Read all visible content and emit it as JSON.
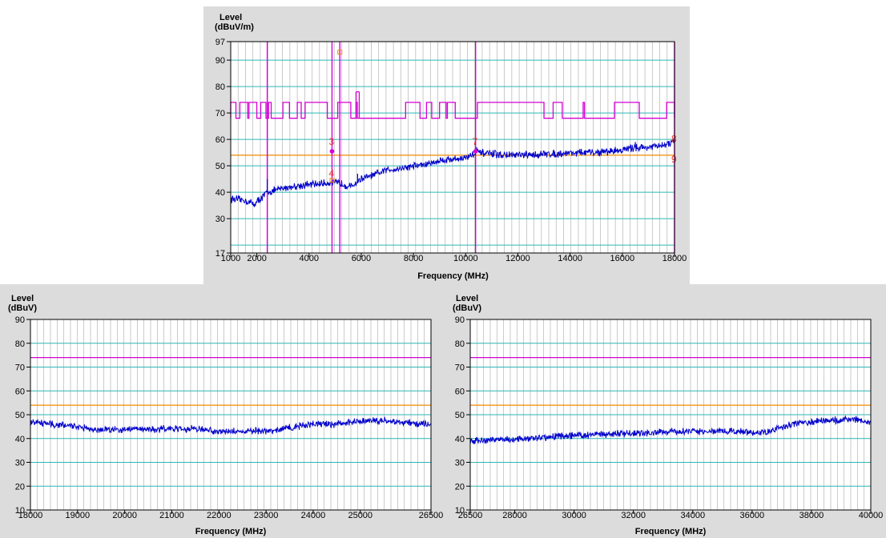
{
  "colors": {
    "panel_bg": "#dcdcdc",
    "plot_bg": "#ffffff",
    "grid_horizontal": "#2cb6b6",
    "grid_vertical": "#b4b4b4",
    "trace": "#0000cc",
    "limit_magenta": "#d400d4",
    "limit_orange": "#f08c00",
    "marker_red": "#e83030"
  },
  "chart_data": [
    {
      "type": "line",
      "ylabel_line1": "Level",
      "ylabel_line2": "(dBuV/m)",
      "xlabel": "Frequency (MHz)",
      "xlim": [
        1000,
        18000
      ],
      "ylim": [
        17,
        97
      ],
      "x_ticks": [
        "1000",
        "2000",
        "4000",
        "6000",
        "8000",
        "10000",
        "12000",
        "14000",
        "16000",
        "18000"
      ],
      "x_tick_values": [
        1000,
        2000,
        4000,
        6000,
        8000,
        10000,
        12000,
        14000,
        16000,
        18000
      ],
      "y_ticks": [
        "17",
        "30",
        "40",
        "50",
        "60",
        "70",
        "80",
        "90",
        "97"
      ],
      "y_tick_values": [
        17,
        30,
        40,
        50,
        60,
        70,
        80,
        90,
        97
      ],
      "horizontal_grid_values": [
        20,
        30,
        40,
        50,
        60,
        70,
        80,
        90
      ],
      "limit_line_level": 54,
      "vertical_lines": [
        2400,
        4880,
        5180,
        10380,
        18000
      ],
      "trace": {
        "points": [
          [
            1000,
            37.5
          ],
          [
            1500,
            37
          ],
          [
            1900,
            35.5
          ],
          [
            2200,
            38
          ],
          [
            2400,
            40
          ],
          [
            3000,
            41.5
          ],
          [
            3600,
            42.5
          ],
          [
            4200,
            43
          ],
          [
            4700,
            43.5
          ],
          [
            5200,
            43.5
          ],
          [
            5600,
            42
          ],
          [
            6000,
            45
          ],
          [
            6500,
            46.5
          ],
          [
            7000,
            48.5
          ],
          [
            7500,
            49
          ],
          [
            8000,
            50
          ],
          [
            8500,
            50.5
          ],
          [
            9000,
            52
          ],
          [
            9500,
            52.5
          ],
          [
            10000,
            53
          ],
          [
            10400,
            55
          ],
          [
            11000,
            54.5
          ],
          [
            11500,
            54
          ],
          [
            12000,
            54
          ],
          [
            12500,
            54
          ],
          [
            13000,
            54.5
          ],
          [
            13500,
            54.5
          ],
          [
            14000,
            55
          ],
          [
            14500,
            55
          ],
          [
            15000,
            55
          ],
          [
            15500,
            55.5
          ],
          [
            16000,
            56
          ],
          [
            16500,
            57
          ],
          [
            17000,
            57
          ],
          [
            17500,
            57.5
          ],
          [
            18000,
            59
          ]
        ],
        "spikes": [
          [
            2400,
            45
          ],
          [
            5860,
            47
          ],
          [
            10420,
            57
          ],
          [
            16500,
            59
          ]
        ]
      },
      "peak_limit": {
        "low": 68,
        "high": 74,
        "high_ranges": [
          [
            1000,
            1200
          ],
          [
            1350,
            1650
          ],
          [
            1700,
            2000
          ],
          [
            2150,
            2350
          ],
          [
            2450,
            2550
          ],
          [
            3000,
            3250
          ],
          [
            3550,
            3700
          ],
          [
            3850,
            4700
          ],
          [
            5100,
            5600
          ],
          [
            5800,
            5850
          ],
          [
            7700,
            8250
          ],
          [
            8500,
            8700
          ],
          [
            9000,
            9250
          ],
          [
            9300,
            9600
          ],
          [
            10450,
            13000
          ],
          [
            13350,
            13700
          ],
          [
            14500,
            14550
          ],
          [
            15700,
            16650
          ],
          [
            17700,
            18000
          ]
        ],
        "spikes": [
          [
            5800,
            78
          ]
        ]
      },
      "markers": [
        {
          "label": "3",
          "x": 4880,
          "y": 55.5
        },
        {
          "label": "4",
          "x": 4880,
          "y": 45
        },
        {
          "label": "7",
          "x": 10380,
          "y": 55.5
        },
        {
          "label": "8",
          "x": 18000,
          "y": 59
        },
        {
          "label": "9",
          "x": 18000,
          "y": 52.5
        }
      ],
      "square_markers": [
        {
          "x": 5180,
          "y": 93
        },
        {
          "x": 4880,
          "y": 44.5
        }
      ]
    },
    {
      "type": "line",
      "ylabel_line1": "Level",
      "ylabel_line2": "(dBuV)",
      "xlabel": "Frequency (MHz)",
      "xlim": [
        18000,
        26500
      ],
      "ylim": [
        10,
        90
      ],
      "x_ticks": [
        "18000",
        "19000",
        "20000",
        "21000",
        "22000",
        "23000",
        "24000",
        "25000",
        "26500"
      ],
      "x_tick_values": [
        18000,
        19000,
        20000,
        21000,
        22000,
        23000,
        24000,
        25000,
        26500
      ],
      "y_ticks": [
        "10",
        "20",
        "30",
        "40",
        "50",
        "60",
        "70",
        "80",
        "90"
      ],
      "y_tick_values": [
        10,
        20,
        30,
        40,
        50,
        60,
        70,
        80,
        90
      ],
      "horizontal_grid_values": [
        20,
        30,
        40,
        50,
        60,
        70,
        80
      ],
      "limit_magenta": 74,
      "limit_orange": 54,
      "trace": {
        "points": [
          [
            18000,
            47
          ],
          [
            18500,
            46
          ],
          [
            19000,
            45
          ],
          [
            19500,
            43.5
          ],
          [
            20000,
            44
          ],
          [
            20500,
            44
          ],
          [
            21000,
            44
          ],
          [
            21500,
            44
          ],
          [
            22000,
            43
          ],
          [
            22500,
            43
          ],
          [
            23000,
            43
          ],
          [
            23500,
            44.5
          ],
          [
            24000,
            46
          ],
          [
            24500,
            46
          ],
          [
            25000,
            47.5
          ],
          [
            25500,
            47.5
          ],
          [
            26000,
            46.5
          ],
          [
            26500,
            46
          ]
        ]
      }
    },
    {
      "type": "line",
      "ylabel_line1": "Level",
      "ylabel_line2": "(dBuV)",
      "xlabel": "Frequency (MHz)",
      "xlim": [
        26500,
        40000
      ],
      "ylim": [
        10,
        90
      ],
      "x_ticks": [
        "26500",
        "28000",
        "30000",
        "32000",
        "34000",
        "36000",
        "38000",
        "40000"
      ],
      "x_tick_values": [
        26500,
        28000,
        30000,
        32000,
        34000,
        36000,
        38000,
        40000
      ],
      "y_ticks": [
        "10",
        "20",
        "30",
        "40",
        "50",
        "60",
        "70",
        "80",
        "90"
      ],
      "y_tick_values": [
        10,
        20,
        30,
        40,
        50,
        60,
        70,
        80,
        90
      ],
      "horizontal_grid_values": [
        20,
        30,
        40,
        50,
        60,
        70,
        80
      ],
      "limit_magenta": 74,
      "limit_orange": 54,
      "trace": {
        "points": [
          [
            26500,
            39
          ],
          [
            27500,
            39.5
          ],
          [
            28500,
            40
          ],
          [
            29500,
            41
          ],
          [
            30500,
            41.5
          ],
          [
            31500,
            42
          ],
          [
            32500,
            42.5
          ],
          [
            33500,
            43
          ],
          [
            34500,
            43
          ],
          [
            35500,
            43
          ],
          [
            36500,
            42.5
          ],
          [
            37000,
            45
          ],
          [
            37500,
            46.5
          ],
          [
            38500,
            47.5
          ],
          [
            39500,
            48
          ],
          [
            40000,
            47
          ]
        ]
      }
    }
  ]
}
